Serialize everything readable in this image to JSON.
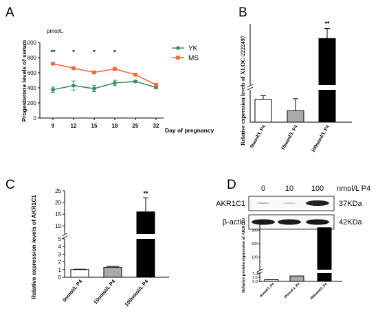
{
  "panels": {
    "A": "A",
    "B": "B",
    "C": "C",
    "D": "D"
  },
  "chart_data": [
    {
      "id": "A",
      "type": "line",
      "ylabel": "Progesterone levels of serum",
      "yunit": "pmol/L",
      "xlabel": "Day of pregnancy",
      "x": [
        "9",
        "12",
        "15",
        "18",
        "25",
        "32"
      ],
      "ylim": [
        0,
        1000
      ],
      "yticks": [
        "0",
        "200",
        "400",
        "600",
        "800",
        "1000"
      ],
      "series": [
        {
          "name": "YK",
          "color": "#3a8f5e",
          "marker": "circle",
          "values": [
            375,
            430,
            390,
            465,
            485,
            405
          ],
          "errors": [
            35,
            60,
            40,
            35,
            15,
            15
          ]
        },
        {
          "name": "MS",
          "color": "#f26b3a",
          "marker": "square",
          "values": [
            720,
            660,
            605,
            650,
            575,
            440
          ],
          "errors": [
            10,
            15,
            15,
            15,
            20,
            15
          ]
        }
      ],
      "significance": [
        "**",
        "*",
        "*",
        "*",
        "",
        ""
      ]
    },
    {
      "id": "B",
      "type": "bar",
      "ylabel": "Relative expression levels of XLOC-2222497",
      "categories": [
        "0nmol/L P4",
        "10nmol/L P4",
        "100nmol/L P4"
      ],
      "values": [
        8,
        4,
        85
      ],
      "errors": [
        1.3,
        4.2,
        12
      ],
      "colors": [
        "#ffffff",
        "#aaaaaa",
        "#000000"
      ],
      "axis_break": true,
      "significance": [
        "",
        "",
        "**"
      ]
    },
    {
      "id": "C",
      "type": "bar",
      "ylabel": "Relative expression levels of AKR1C1",
      "categories": [
        "0nmol/L P4",
        "10nmol/L P4",
        "100nmol/L P4"
      ],
      "values": [
        1.0,
        1.3,
        16
      ],
      "errors": [
        0.05,
        0.12,
        6
      ],
      "colors": [
        "#ffffff",
        "#aaaaaa",
        "#000000"
      ],
      "yticks_lower": [
        "0",
        "1",
        "2",
        "3",
        "4",
        "5"
      ],
      "yticks_upper": [
        "10",
        "15",
        "20",
        "25"
      ],
      "axis_break": [
        5,
        8
      ],
      "significance": [
        "",
        "",
        "**"
      ]
    },
    {
      "id": "D",
      "type": "bar",
      "ylabel": "Relative protein expression of AKR1C1",
      "categories": [
        "0nmol/L P4",
        "10nmol/L P4",
        "100nmol/L P4"
      ],
      "values": [
        1.0,
        3.3,
        320
      ],
      "colors": [
        "#ffffff",
        "#aaaaaa",
        "#000000"
      ],
      "yticks_lower": [
        "0.0",
        "2.5",
        "5.0"
      ],
      "yticks_upper": [
        "100",
        "200",
        "300"
      ],
      "axis_break": [
        5,
        10
      ],
      "significance": [
        "",
        "",
        "**"
      ]
    }
  ],
  "blot": {
    "concentrations": [
      "0",
      "10",
      "100"
    ],
    "unit": "nmol/L P4",
    "rows": [
      {
        "protein": "AKR1C1",
        "size": "37KDa"
      },
      {
        "protein": "β-actin",
        "size": "42KDa"
      }
    ]
  }
}
